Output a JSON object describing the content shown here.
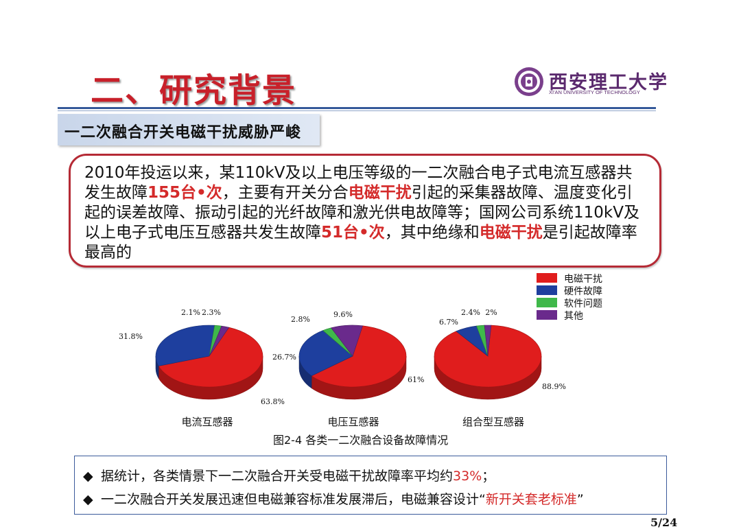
{
  "header": {
    "title": "二、研究背景",
    "logo_cn": "西安理工大学",
    "logo_en": "XI'AN UNIVERSITY OF TECHNOLOGY",
    "subtitle": "一二次融合开关电磁干扰威胁严峻"
  },
  "description": {
    "line1": "2010年投运以来，某110kV及以上电压等级的一二次融合电子式电流互感器共",
    "line2_pre": "发生故障",
    "line2_hl1": "155台•次",
    "line2_mid": "，主要有开关分合",
    "line2_hl2": "电磁干扰",
    "line2_post": "引起的采集器故障、温度变化引",
    "line3": "起的误差故障、振动引起的光纤故障和激光供电故障等；国网公司系统110kV及",
    "line4_pre": "以上电子式电压互感器共发生故障",
    "line4_hl1": "51台•次",
    "line4_mid": "，其中绝缘和",
    "line4_hl2": "电磁干扰",
    "line4_post": "是引起故障率",
    "line5": "最高的"
  },
  "legend": [
    {
      "label": "电磁干扰",
      "color": "#e01d1d"
    },
    {
      "label": "硬件故障",
      "color": "#1e3f9e"
    },
    {
      "label": "软件问题",
      "color": "#3fb84a"
    },
    {
      "label": "其他",
      "color": "#6a2a8c"
    }
  ],
  "chart_data": [
    {
      "type": "pie",
      "title": "电流互感器",
      "series": [
        {
          "name": "电磁干扰",
          "value": 63.8,
          "label": "63.8%"
        },
        {
          "name": "硬件故障",
          "value": 31.8,
          "label": "31.8%"
        },
        {
          "name": "软件问题",
          "value": 2.1,
          "label": "2.1%"
        },
        {
          "name": "其他",
          "value": 2.3,
          "label": "2.3%"
        }
      ]
    },
    {
      "type": "pie",
      "title": "电压互感器",
      "series": [
        {
          "name": "电磁干扰",
          "value": 61,
          "label": "61%"
        },
        {
          "name": "硬件故障",
          "value": 26.7,
          "label": "26.7%"
        },
        {
          "name": "软件问题",
          "value": 2.8,
          "label": "2.8%"
        },
        {
          "name": "其他",
          "value": 9.6,
          "label": "9.6%"
        }
      ]
    },
    {
      "type": "pie",
      "title": "组合型互感器",
      "series": [
        {
          "name": "电磁干扰",
          "value": 88.9,
          "label": "88.9%"
        },
        {
          "name": "硬件故障",
          "value": 6.7,
          "label": "6.7%"
        },
        {
          "name": "软件问题",
          "value": 2.4,
          "label": "2.4%"
        },
        {
          "name": "其他",
          "value": 2,
          "label": "2%"
        }
      ]
    }
  ],
  "caption": "图2-4 各类一二次融合设备故障情况",
  "bullets": {
    "b1_pre": "据统计，各类情景下一二次融合开关受电磁干扰故障率平均约",
    "b1_hl": "33%",
    "b1_post": "；",
    "b2_pre": "一二次融合开关发展迅速但电磁兼容标准发展滞后，电磁兼容设计“",
    "b2_hl": "新开关套老标准",
    "b2_post": "”",
    "marker": "◆"
  },
  "page_number": "5/24"
}
